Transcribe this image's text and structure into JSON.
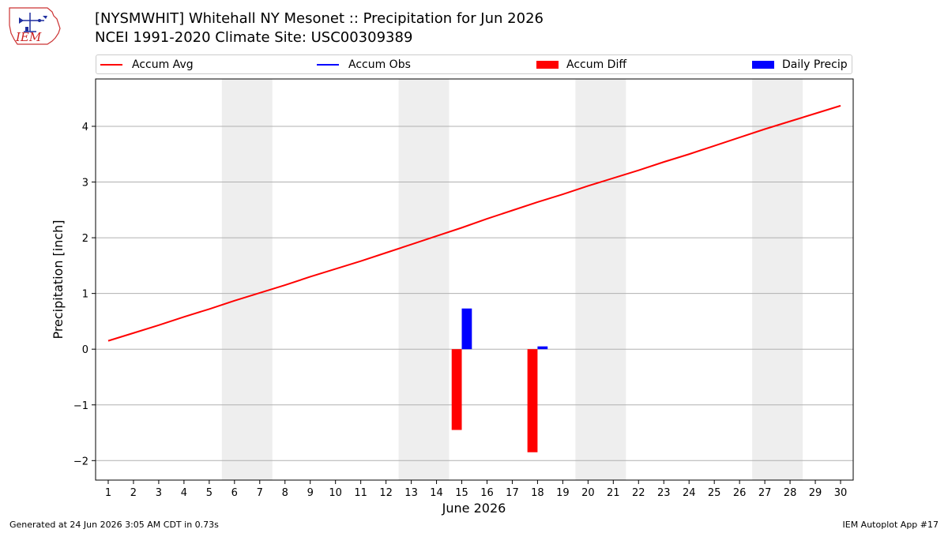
{
  "header": {
    "logo_text": "IEM",
    "title_line1": "[NYSMWHIT] Whitehall NY Mesonet :: Precipitation for Jun 2026",
    "title_line2": "NCEI 1991-2020 Climate Site: USC00309389"
  },
  "footer": {
    "generated": "Generated at 24 Jun 2026 3:05 AM CDT in 0.73s",
    "app": "IEM Autoplot App #17"
  },
  "colors": {
    "accum_avg": "#ff0000",
    "accum_obs": "#0000ff",
    "accum_diff": "#ff0000",
    "daily_precip": "#0000ff",
    "weekend_band": "#eeeeee",
    "grid": "#b0b0b0"
  },
  "chart_data": {
    "type": "bar",
    "title": "",
    "xlabel": "June 2026",
    "ylabel": "Precipitation [inch]",
    "xlim": [
      0.5,
      30.5
    ],
    "ylim": [
      -2.35,
      4.85
    ],
    "x_ticks": [
      1,
      2,
      3,
      4,
      5,
      6,
      7,
      8,
      9,
      10,
      11,
      12,
      13,
      14,
      15,
      16,
      17,
      18,
      19,
      20,
      21,
      22,
      23,
      24,
      25,
      26,
      27,
      28,
      29,
      30
    ],
    "y_ticks": [
      -2,
      -1,
      0,
      1,
      2,
      3,
      4
    ],
    "y_tick_labels": [
      "−2",
      "−1",
      "0",
      "1",
      "2",
      "3",
      "4"
    ],
    "grid": "horizontal",
    "legend_position": "top",
    "weekend_bands": [
      [
        6,
        7
      ],
      [
        13,
        14
      ],
      [
        20,
        21
      ],
      [
        27,
        28
      ]
    ],
    "legend": [
      "Accum Avg",
      "Accum Obs",
      "Accum Diff",
      "Daily Precip"
    ],
    "series": [
      {
        "name": "Accum Avg",
        "kind": "line",
        "x": [
          1,
          2,
          3,
          4,
          5,
          6,
          7,
          8,
          9,
          10,
          11,
          12,
          13,
          14,
          15,
          16,
          17,
          18,
          19,
          20,
          21,
          22,
          23,
          24,
          25,
          26,
          27,
          28,
          29,
          30
        ],
        "values": [
          0.15,
          0.29,
          0.43,
          0.58,
          0.72,
          0.87,
          1.01,
          1.15,
          1.3,
          1.44,
          1.58,
          1.73,
          1.88,
          2.03,
          2.18,
          2.34,
          2.49,
          2.64,
          2.78,
          2.93,
          3.07,
          3.21,
          3.36,
          3.5,
          3.65,
          3.8,
          3.95,
          4.09,
          4.23,
          4.37
        ]
      },
      {
        "name": "Accum Obs",
        "kind": "line",
        "x": [],
        "values": []
      },
      {
        "name": "Accum Diff",
        "kind": "bar",
        "x": [
          15,
          18
        ],
        "values": [
          -1.45,
          -1.85
        ]
      },
      {
        "name": "Daily Precip",
        "kind": "bar",
        "x": [
          15,
          18
        ],
        "values": [
          0.73,
          0.05
        ]
      }
    ]
  }
}
